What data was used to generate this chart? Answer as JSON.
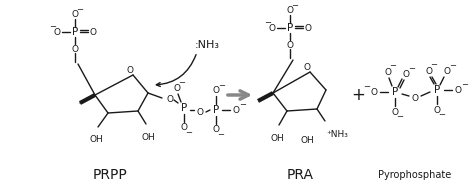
{
  "bg_color": "#ffffff",
  "fig_width": 4.74,
  "fig_height": 1.91,
  "dpi": 100,
  "label_prpp": "PRPP",
  "label_pra": "PRA",
  "label_pyrophosphate": "Pyrophosphate",
  "label_nh3_reactant": ":NH₃",
  "label_nh3_product": "⁺NH₃",
  "arrow_color": "#888888",
  "line_color": "#1a1a1a",
  "plus_sign": "+",
  "text_color": "#1a1a1a"
}
